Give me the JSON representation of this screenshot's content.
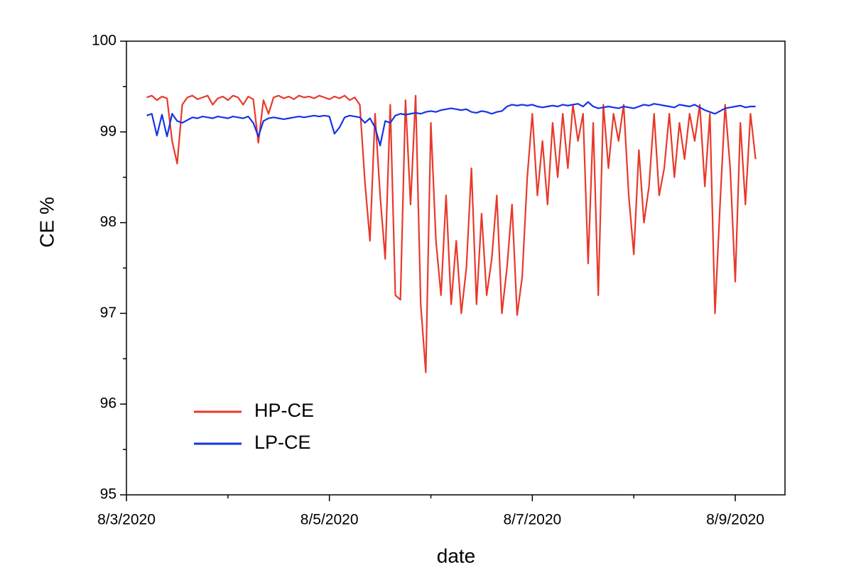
{
  "chart_data": {
    "type": "line",
    "x_label": "date",
    "y_label": "CE %",
    "xlim": [
      3,
      9.49
    ],
    "xticks": [
      {
        "value": 3,
        "label": "8/3/2020"
      },
      {
        "value": 5,
        "label": "8/5/2020"
      },
      {
        "value": 7,
        "label": "8/7/2020"
      },
      {
        "value": 9,
        "label": "8/9/2020"
      }
    ],
    "xminorticks": [
      4,
      6,
      8
    ],
    "ylim": [
      95,
      100
    ],
    "yticks": [
      95,
      96,
      97,
      98,
      99,
      100
    ],
    "yminorticks": [
      95.5,
      96.5,
      97.5,
      98.5,
      99.5
    ],
    "legend": "lower left",
    "x": [
      3.2,
      3.25,
      3.3,
      3.35,
      3.4,
      3.45,
      3.5,
      3.55,
      3.6,
      3.65,
      3.7,
      3.75,
      3.8,
      3.85,
      3.9,
      3.95,
      4.0,
      4.05,
      4.1,
      4.15,
      4.2,
      4.25,
      4.3,
      4.35,
      4.4,
      4.45,
      4.5,
      4.55,
      4.6,
      4.65,
      4.7,
      4.75,
      4.8,
      4.85,
      4.9,
      4.95,
      5.0,
      5.05,
      5.1,
      5.15,
      5.2,
      5.25,
      5.3,
      5.35,
      5.4,
      5.45,
      5.5,
      5.55,
      5.6,
      5.65,
      5.7,
      5.75,
      5.8,
      5.85,
      5.9,
      5.95,
      6.0,
      6.05,
      6.1,
      6.15,
      6.2,
      6.25,
      6.3,
      6.35,
      6.4,
      6.45,
      6.5,
      6.55,
      6.6,
      6.65,
      6.7,
      6.75,
      6.8,
      6.85,
      6.9,
      6.95,
      7.0,
      7.05,
      7.1,
      7.15,
      7.2,
      7.25,
      7.3,
      7.35,
      7.4,
      7.45,
      7.5,
      7.55,
      7.6,
      7.65,
      7.7,
      7.75,
      7.8,
      7.85,
      7.9,
      7.95,
      8.0,
      8.05,
      8.1,
      8.15,
      8.2,
      8.25,
      8.3,
      8.35,
      8.4,
      8.45,
      8.5,
      8.55,
      8.6,
      8.65,
      8.7,
      8.75,
      8.8,
      8.85,
      8.9,
      8.95,
      9.0,
      9.05,
      9.1,
      9.15,
      9.2
    ],
    "series": [
      {
        "name": "HP-CE",
        "color": "#e8392a",
        "values": [
          99.38,
          99.4,
          99.35,
          99.39,
          99.37,
          98.9,
          98.65,
          99.3,
          99.38,
          99.4,
          99.36,
          99.38,
          99.4,
          99.3,
          99.37,
          99.39,
          99.35,
          99.4,
          99.38,
          99.3,
          99.39,
          99.36,
          98.88,
          99.35,
          99.2,
          99.38,
          99.4,
          99.37,
          99.39,
          99.36,
          99.4,
          99.38,
          99.39,
          99.37,
          99.4,
          99.38,
          99.36,
          99.39,
          99.37,
          99.4,
          99.35,
          99.38,
          99.3,
          98.45,
          97.8,
          99.2,
          98.3,
          97.6,
          99.3,
          97.2,
          97.15,
          99.35,
          98.2,
          99.4,
          97.1,
          96.35,
          99.1,
          97.8,
          97.2,
          98.3,
          97.1,
          97.8,
          97.0,
          97.5,
          98.6,
          97.1,
          98.1,
          97.2,
          97.6,
          98.3,
          97.0,
          97.5,
          98.2,
          96.98,
          97.4,
          98.5,
          99.2,
          98.3,
          98.9,
          98.2,
          99.1,
          98.5,
          99.2,
          98.6,
          99.3,
          98.9,
          99.2,
          97.55,
          99.1,
          97.2,
          99.3,
          98.6,
          99.2,
          98.9,
          99.3,
          98.3,
          97.65,
          98.8,
          98.0,
          98.4,
          99.2,
          98.3,
          98.6,
          99.2,
          98.5,
          99.1,
          98.7,
          99.2,
          98.9,
          99.3,
          98.4,
          99.2,
          97.0,
          98.2,
          99.3,
          98.6,
          97.35,
          99.1,
          98.2,
          99.2,
          98.7
        ]
      },
      {
        "name": "LP-CE",
        "color": "#1533e8",
        "values": [
          99.18,
          99.2,
          98.96,
          99.19,
          98.95,
          99.2,
          99.12,
          99.1,
          99.13,
          99.16,
          99.15,
          99.17,
          99.16,
          99.15,
          99.17,
          99.16,
          99.15,
          99.17,
          99.16,
          99.15,
          99.17,
          99.1,
          98.95,
          99.12,
          99.15,
          99.16,
          99.15,
          99.14,
          99.15,
          99.16,
          99.17,
          99.16,
          99.17,
          99.18,
          99.17,
          99.18,
          99.17,
          98.98,
          99.05,
          99.16,
          99.18,
          99.17,
          99.16,
          99.1,
          99.15,
          99.05,
          98.85,
          99.12,
          99.1,
          99.18,
          99.2,
          99.19,
          99.2,
          99.21,
          99.2,
          99.22,
          99.23,
          99.22,
          99.24,
          99.25,
          99.26,
          99.25,
          99.24,
          99.25,
          99.22,
          99.21,
          99.23,
          99.22,
          99.2,
          99.22,
          99.23,
          99.28,
          99.3,
          99.29,
          99.3,
          99.29,
          99.3,
          99.28,
          99.27,
          99.28,
          99.29,
          99.28,
          99.3,
          99.29,
          99.3,
          99.31,
          99.28,
          99.33,
          99.28,
          99.26,
          99.27,
          99.28,
          99.27,
          99.26,
          99.28,
          99.27,
          99.26,
          99.28,
          99.3,
          99.29,
          99.31,
          99.3,
          99.29,
          99.28,
          99.27,
          99.3,
          99.29,
          99.28,
          99.3,
          99.27,
          99.24,
          99.22,
          99.2,
          99.23,
          99.26,
          99.27,
          99.28,
          99.29,
          99.27,
          99.28,
          99.28
        ]
      }
    ]
  }
}
